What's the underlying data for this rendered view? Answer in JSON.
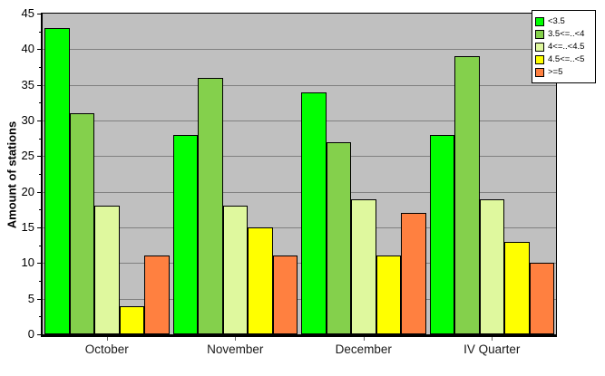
{
  "chart_data": {
    "type": "bar",
    "title": "",
    "categories": [
      "October",
      "November",
      "December",
      "IV Quarter"
    ],
    "series": [
      {
        "name": "<3.5",
        "color": "#00FF00",
        "values": [
          43,
          28,
          34,
          28
        ]
      },
      {
        "name": "3.5<=..<4",
        "color": "#84D04C",
        "values": [
          31,
          36,
          27,
          39
        ]
      },
      {
        "name": "4<=..<4.5",
        "color": "#DFF89E",
        "values": [
          18,
          18,
          19,
          19
        ]
      },
      {
        "name": "4.5<=..<5",
        "color": "#FFFF00",
        "values": [
          4,
          15,
          11,
          13
        ]
      },
      {
        "name": ">=5",
        "color": "#FF8040",
        "values": [
          11,
          11,
          17,
          10
        ]
      }
    ],
    "xlabel": "",
    "ylabel": "Amount of stations",
    "ylim": [
      0,
      45
    ],
    "ytick_step": 5,
    "yminor_step": 2.5,
    "grid": true,
    "grid_color": "#808080",
    "plot_bg": "#C0C0C0",
    "axis_color": "#000000",
    "legend_position": "top-right"
  }
}
